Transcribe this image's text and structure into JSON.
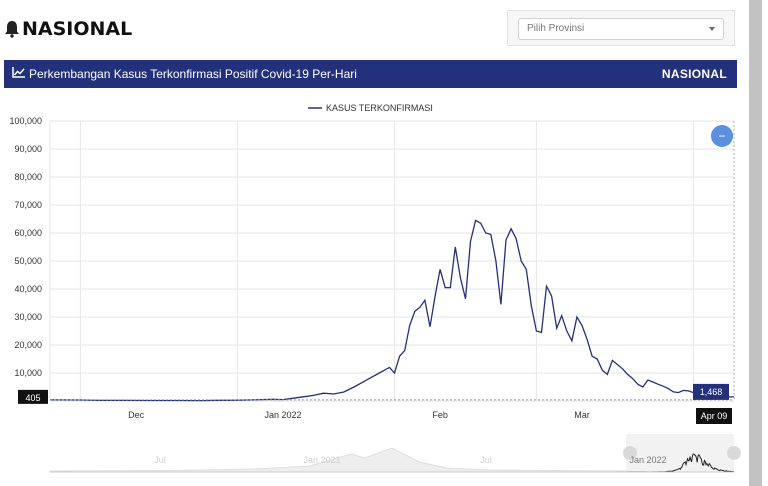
{
  "page": {
    "title": "NASIONAL",
    "title_icon": "bell-icon"
  },
  "province_select": {
    "selected": "Pilih Provinsi",
    "icon": "chevron-down-icon"
  },
  "chart_header": {
    "title": "Perkembangan Kasus Terkonfirmasi Positif Covid-19 Per-Hari",
    "title_icon": "line-chart-icon",
    "scope": "NASIONAL",
    "background": "#23307b"
  },
  "zoom_button": {
    "label": "−",
    "color": "#5b8fe0"
  },
  "chart_data": {
    "type": "line",
    "title": "",
    "legend": "top-center",
    "grid": true,
    "x_start": "2021-11-25",
    "x_end": "2022-04-09",
    "x_ticks": [
      "Dec",
      "Jan 2022",
      "Feb",
      "Mar"
    ],
    "y_ticks": [
      "0",
      "10,000",
      "20,000",
      "30,000",
      "40,000",
      "50,000",
      "60,000",
      "70,000",
      "80,000",
      "90,000",
      "100,000"
    ],
    "ylim": [
      0,
      100000
    ],
    "series": [
      {
        "name": "KASUS TERKONFIRMASI",
        "color": "#23307b",
        "points": [
          [
            "2021-11-25",
            405
          ],
          [
            "2021-12-01",
            350
          ],
          [
            "2021-12-05",
            230
          ],
          [
            "2021-12-10",
            210
          ],
          [
            "2021-12-15",
            190
          ],
          [
            "2021-12-20",
            180
          ],
          [
            "2021-12-25",
            160
          ],
          [
            "2021-12-28",
            250
          ],
          [
            "2022-01-01",
            270
          ],
          [
            "2022-01-04",
            400
          ],
          [
            "2022-01-08",
            600
          ],
          [
            "2022-01-10",
            500
          ],
          [
            "2022-01-12",
            1000
          ],
          [
            "2022-01-14",
            1500
          ],
          [
            "2022-01-16",
            2000
          ],
          [
            "2022-01-18",
            2800
          ],
          [
            "2022-01-20",
            2500
          ],
          [
            "2022-01-22",
            3200
          ],
          [
            "2022-01-24",
            5000
          ],
          [
            "2022-01-26",
            7000
          ],
          [
            "2022-01-27",
            8000
          ],
          [
            "2022-01-29",
            10000
          ],
          [
            "2022-01-30",
            11000
          ],
          [
            "2022-01-31",
            12000
          ],
          [
            "2022-02-01",
            10000
          ],
          [
            "2022-02-02",
            16000
          ],
          [
            "2022-02-03",
            18000
          ],
          [
            "2022-02-04",
            27000
          ],
          [
            "2022-02-05",
            32000
          ],
          [
            "2022-02-06",
            33500
          ],
          [
            "2022-02-07",
            36000
          ],
          [
            "2022-02-08",
            26500
          ],
          [
            "2022-02-09",
            37500
          ],
          [
            "2022-02-10",
            47000
          ],
          [
            "2022-02-11",
            40500
          ],
          [
            "2022-02-12",
            40500
          ],
          [
            "2022-02-13",
            55000
          ],
          [
            "2022-02-14",
            44000
          ],
          [
            "2022-02-15",
            36500
          ],
          [
            "2022-02-16",
            57000
          ],
          [
            "2022-02-17",
            64500
          ],
          [
            "2022-02-18",
            63500
          ],
          [
            "2022-02-19",
            60000
          ],
          [
            "2022-02-20",
            59500
          ],
          [
            "2022-02-21",
            50000
          ],
          [
            "2022-02-22",
            34500
          ],
          [
            "2022-02-23",
            57500
          ],
          [
            "2022-02-24",
            61500
          ],
          [
            "2022-02-25",
            58000
          ],
          [
            "2022-02-26",
            50000
          ],
          [
            "2022-02-27",
            47000
          ],
          [
            "2022-02-28",
            34000
          ],
          [
            "2022-03-01",
            25000
          ],
          [
            "2022-03-02",
            24500
          ],
          [
            "2022-03-03",
            41000
          ],
          [
            "2022-03-04",
            37500
          ],
          [
            "2022-03-05",
            26000
          ],
          [
            "2022-03-06",
            30500
          ],
          [
            "2022-03-07",
            25000
          ],
          [
            "2022-03-08",
            21500
          ],
          [
            "2022-03-09",
            30000
          ],
          [
            "2022-03-10",
            27000
          ],
          [
            "2022-03-11",
            22000
          ],
          [
            "2022-03-12",
            16000
          ],
          [
            "2022-03-13",
            15000
          ],
          [
            "2022-03-14",
            11000
          ],
          [
            "2022-03-15",
            9500
          ],
          [
            "2022-03-16",
            14500
          ],
          [
            "2022-03-17",
            13000
          ],
          [
            "2022-03-18",
            11500
          ],
          [
            "2022-03-19",
            9500
          ],
          [
            "2022-03-20",
            8000
          ],
          [
            "2022-03-21",
            6000
          ],
          [
            "2022-03-22",
            5000
          ],
          [
            "2022-03-23",
            7500
          ],
          [
            "2022-03-24",
            6800
          ],
          [
            "2022-03-25",
            6000
          ],
          [
            "2022-03-26",
            5300
          ],
          [
            "2022-03-27",
            4500
          ],
          [
            "2022-03-28",
            3300
          ],
          [
            "2022-03-29",
            3000
          ],
          [
            "2022-03-30",
            3800
          ],
          [
            "2022-03-31",
            3600
          ],
          [
            "2022-04-01",
            3000
          ],
          [
            "2022-04-02",
            2600
          ],
          [
            "2022-04-03",
            2000
          ],
          [
            "2022-04-04",
            2300
          ],
          [
            "2022-04-05",
            2000
          ],
          [
            "2022-04-06",
            1900
          ],
          [
            "2022-04-07",
            1700
          ],
          [
            "2022-04-08",
            1500
          ],
          [
            "2022-04-09",
            1468
          ]
        ]
      }
    ],
    "y_crosshair_labels": [
      "405",
      "1,468"
    ],
    "x_crosshair_label": "Apr 09",
    "navigator": {
      "x_labels": [
        "Jul",
        "Jan 2021",
        "Jul",
        "Jan 2022"
      ],
      "selected_range": [
        "2021-11-25",
        "2022-04-09"
      ]
    }
  }
}
